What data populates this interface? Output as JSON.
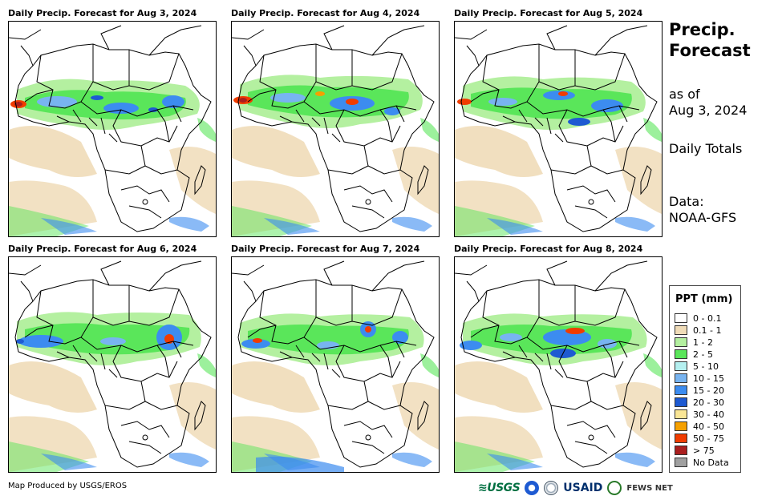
{
  "panels": [
    {
      "title": "Daily Precip. Forecast for Aug 3, 2024"
    },
    {
      "title": "Daily Precip. Forecast for Aug 4, 2024"
    },
    {
      "title": "Daily Precip. Forecast for Aug 5, 2024"
    },
    {
      "title": "Daily Precip. Forecast for Aug 6, 2024"
    },
    {
      "title": "Daily Precip. Forecast for Aug 7, 2024"
    },
    {
      "title": "Daily Precip. Forecast for Aug 8, 2024"
    }
  ],
  "side": {
    "title_line1": "Precip.",
    "title_line2": "Forecast",
    "asof_line1": "as of",
    "asof_line2": "Aug 3, 2024",
    "totals": "Daily Totals",
    "data_line1": "Data:",
    "data_line2": "NOAA-GFS"
  },
  "legend": {
    "title": "PPT (mm)",
    "items": [
      {
        "label": "0 - 0.1",
        "color": "#ffffff"
      },
      {
        "label": "0.1 - 1",
        "color": "#f0dcb8"
      },
      {
        "label": "1 - 2",
        "color": "#b4f0a0"
      },
      {
        "label": "2 - 5",
        "color": "#5ae65a"
      },
      {
        "label": "5 - 10",
        "color": "#b4f0f0"
      },
      {
        "label": "10 - 15",
        "color": "#78b4f0"
      },
      {
        "label": "15 - 20",
        "color": "#3c8cf0"
      },
      {
        "label": "20 - 30",
        "color": "#1e5ad2"
      },
      {
        "label": "30 - 40",
        "color": "#fae696"
      },
      {
        "label": "40 - 50",
        "color": "#f5a000"
      },
      {
        "label": "50 - 75",
        "color": "#f03c00"
      },
      {
        "label": "> 75",
        "color": "#aa1e1e"
      },
      {
        "label": "No Data",
        "color": "#a0a0a0"
      }
    ]
  },
  "footer": {
    "credit": "Map Produced by USGS/EROS",
    "logo_usgs": "≋USGS",
    "logo_usaid": "USAID",
    "logo_fews": "FEWS NET"
  }
}
